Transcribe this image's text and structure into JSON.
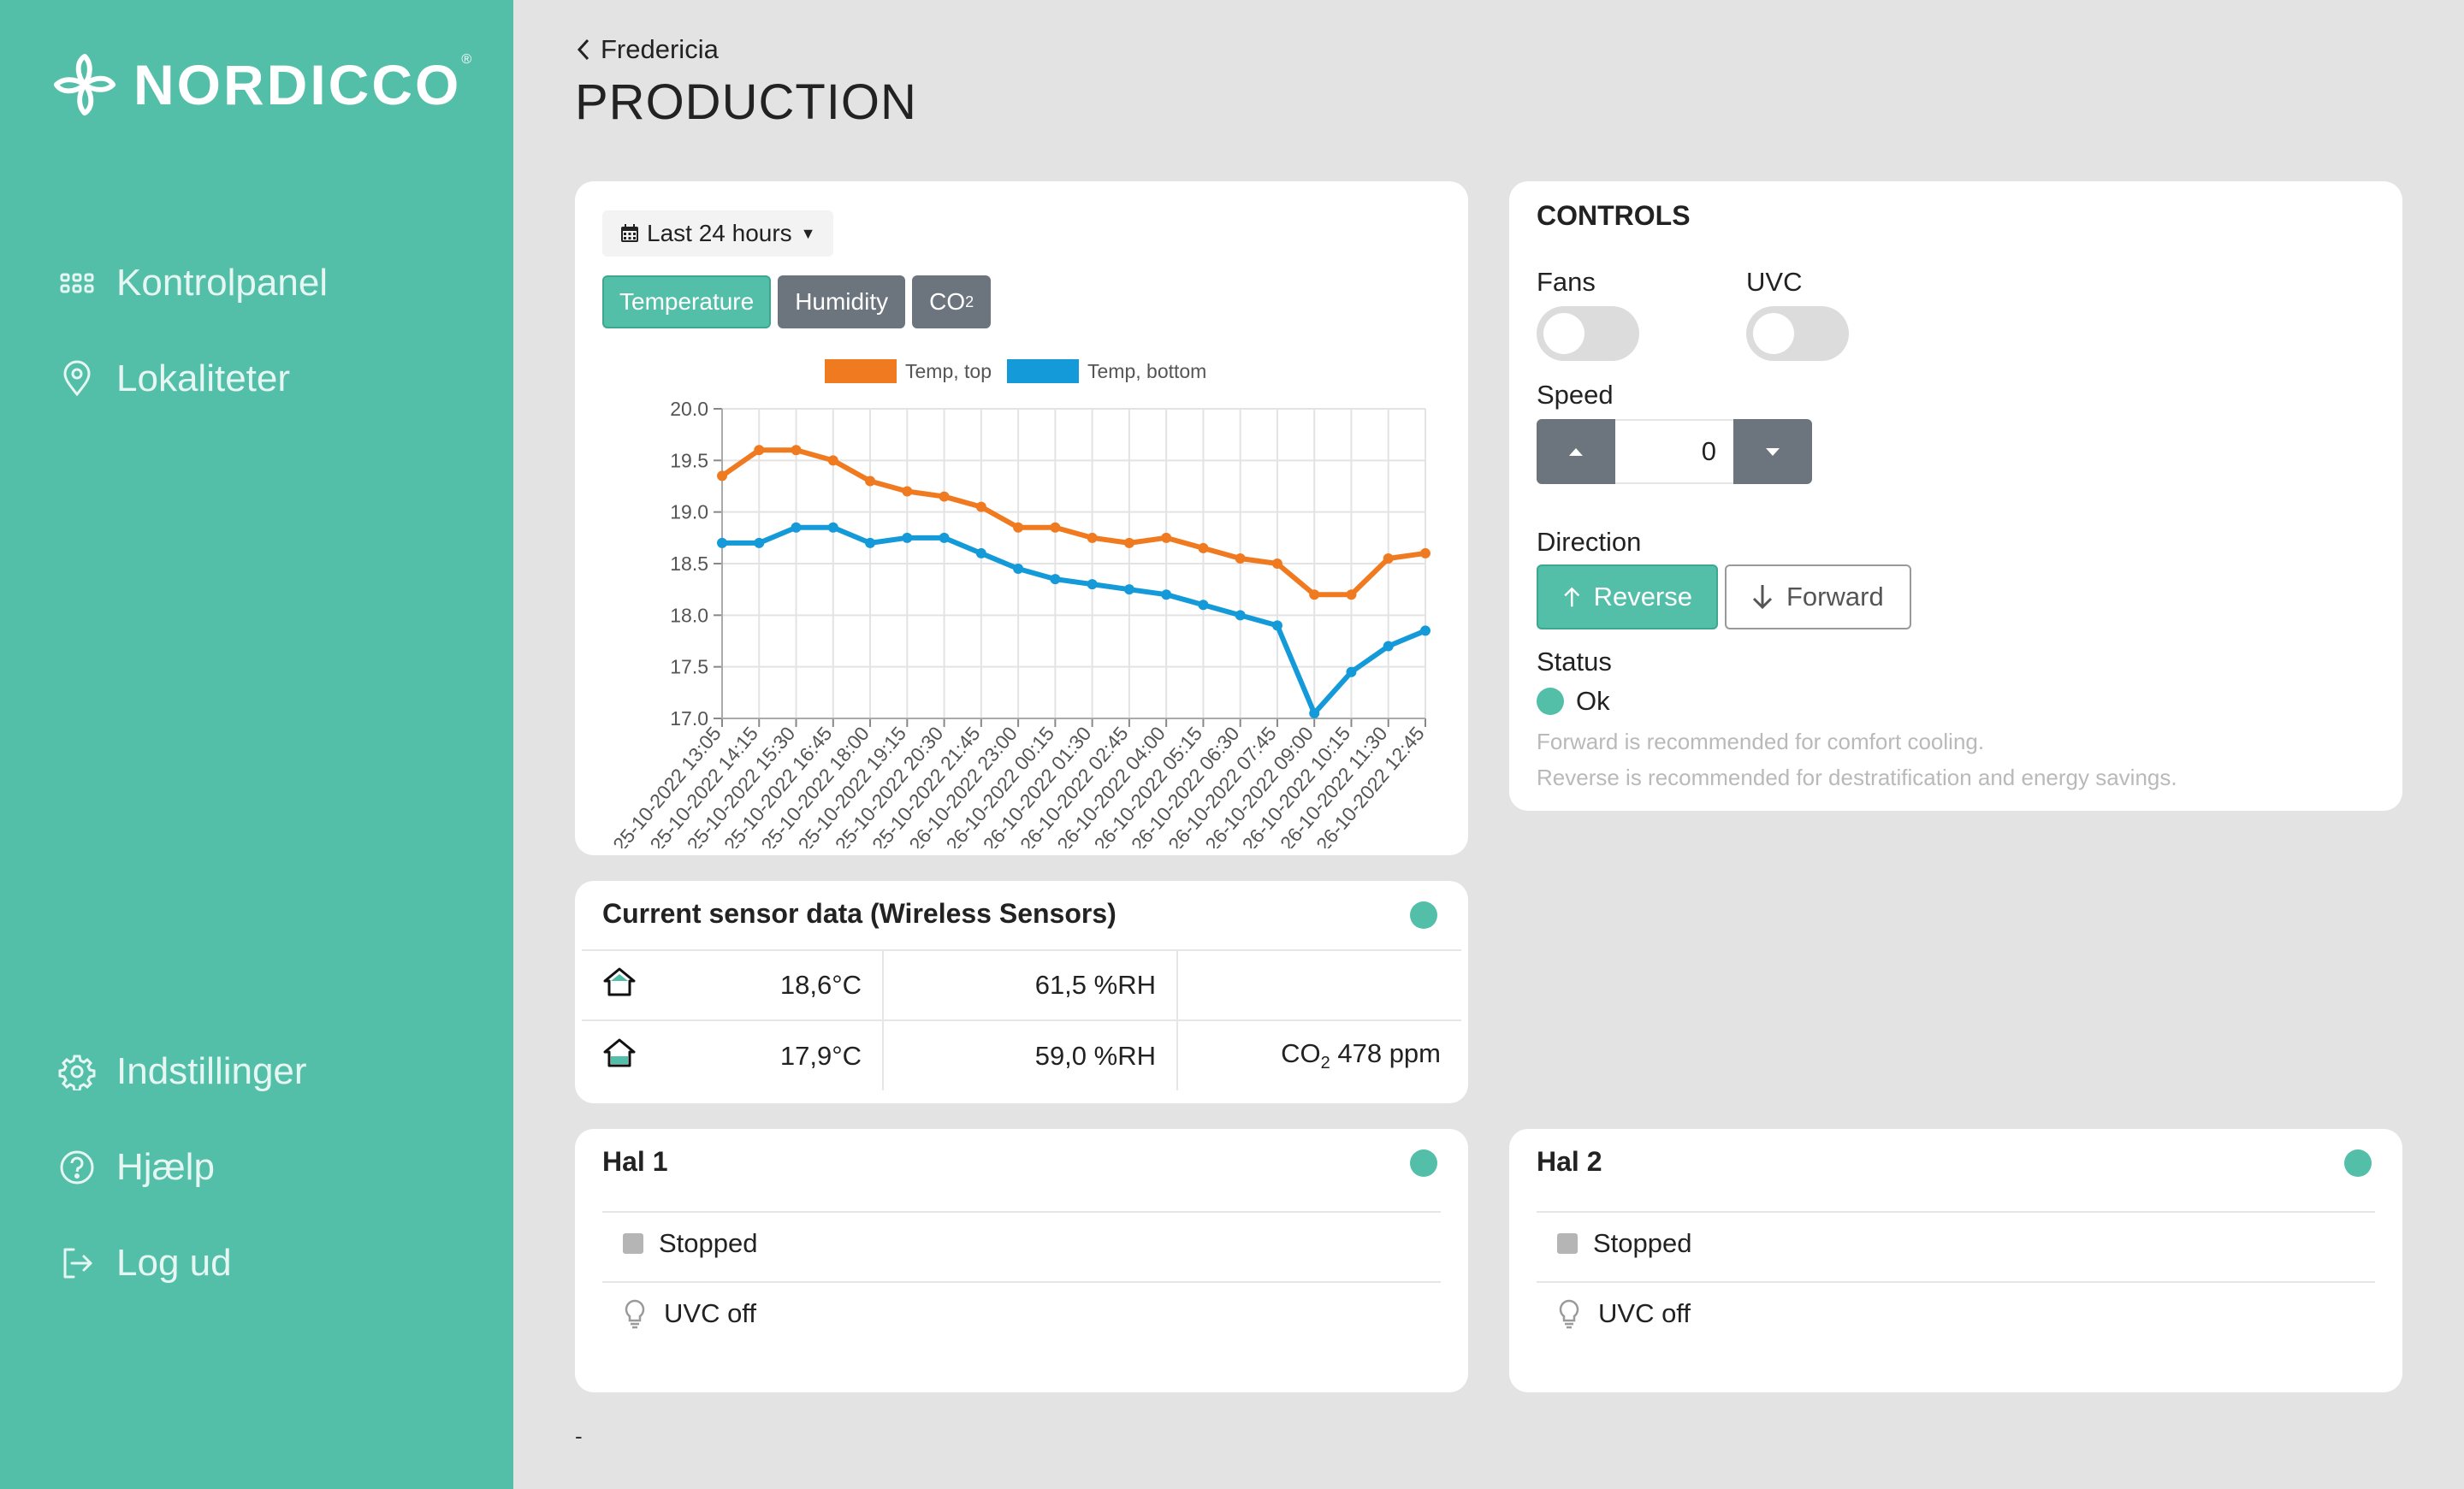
{
  "brand": {
    "name": "NORDICCO",
    "mark": "®"
  },
  "sidebar": {
    "top_items": [
      {
        "label": "Kontrolpanel",
        "icon": "grid-icon"
      },
      {
        "label": "Lokaliteter",
        "icon": "location-pin-icon"
      }
    ],
    "bottom_items": [
      {
        "label": "Indstillinger",
        "icon": "gear-icon"
      },
      {
        "label": "Hjælp",
        "icon": "help-circle-icon"
      },
      {
        "label": "Log ud",
        "icon": "logout-icon"
      }
    ]
  },
  "header": {
    "back_label": "Fredericia",
    "title": "PRODUCTION"
  },
  "chart_panel": {
    "range_label": "Last 24 hours",
    "tabs": [
      {
        "label": "Temperature",
        "active": true
      },
      {
        "label": "Humidity",
        "active": false
      },
      {
        "label": "CO",
        "sub": "2",
        "active": false
      }
    ]
  },
  "chart_data": {
    "type": "line",
    "ylim": [
      17.0,
      20.0
    ],
    "yticks": [
      "20.0",
      "19.5",
      "19.0",
      "18.5",
      "18.0",
      "17.5",
      "17.0"
    ],
    "grid": true,
    "legend_position": "top",
    "categories": [
      "25-10-2022 13:05",
      "25-10-2022 14:15",
      "25-10-2022 15:30",
      "25-10-2022 16:45",
      "25-10-2022 18:00",
      "25-10-2022 19:15",
      "25-10-2022 20:30",
      "25-10-2022 21:45",
      "26-10-2022 23:00",
      "26-10-2022 00:15",
      "26-10-2022 01:30",
      "26-10-2022 02:45",
      "26-10-2022 04:00",
      "26-10-2022 05:15",
      "26-10-2022 06:30",
      "26-10-2022 07:45",
      "26-10-2022 09:00",
      "26-10-2022 10:15",
      "26-10-2022 11:30",
      "26-10-2022 12:45"
    ],
    "series": [
      {
        "name": "Temp, top",
        "color": "#f07a20",
        "values": [
          19.35,
          19.6,
          19.6,
          19.5,
          19.3,
          19.2,
          19.15,
          19.05,
          18.85,
          18.85,
          18.75,
          18.7,
          18.75,
          18.65,
          18.55,
          18.5,
          18.2,
          18.2,
          18.55,
          18.6
        ]
      },
      {
        "name": "Temp, bottom",
        "color": "#149ad8",
        "values": [
          18.7,
          18.7,
          18.85,
          18.85,
          18.7,
          18.75,
          18.75,
          18.6,
          18.45,
          18.35,
          18.3,
          18.25,
          18.2,
          18.1,
          18.0,
          17.9,
          17.05,
          17.45,
          17.7,
          17.85
        ]
      }
    ]
  },
  "controls": {
    "title": "CONTROLS",
    "fans_label": "Fans",
    "uvc_label": "UVC",
    "speed_label": "Speed",
    "speed_value": "0",
    "direction_label": "Direction",
    "reverse_label": "Reverse",
    "forward_label": "Forward",
    "status_label": "Status",
    "status_value": "Ok",
    "status_color": "#53bfa8",
    "hint_forward": "Forward is recommended for comfort cooling.",
    "hint_reverse": "Reverse is recommended for destratification and energy savings."
  },
  "sensor": {
    "title": "Current sensor data (Wireless Sensors)",
    "rows": [
      {
        "temp": "18,6°C",
        "humidity": "61,5 %RH",
        "co2_prefix": "",
        "co2_value": ""
      },
      {
        "temp": "17,9°C",
        "humidity": "59,0 %RH",
        "co2_prefix": "CO",
        "co2_value": "478 ppm"
      }
    ]
  },
  "hal1": {
    "title": "Hal 1",
    "state": "Stopped",
    "uvc": "UVC off"
  },
  "hal2": {
    "title": "Hal 2",
    "state": "Stopped",
    "uvc": "UVC off"
  },
  "footer": {
    "text": "-"
  }
}
